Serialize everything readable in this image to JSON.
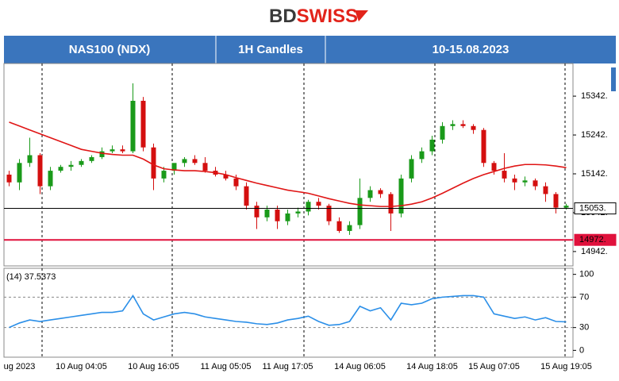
{
  "logo": {
    "first": "BD",
    "second": "SWISS"
  },
  "header": {
    "symbol": "NAS100 (NDX)",
    "timeframe": "1H Candles",
    "dates": "10-15.08.2023"
  },
  "chart_data": [
    {
      "type": "candlestick",
      "categories": [
        null,
        "ug 2023",
        null,
        null,
        null,
        null,
        null,
        "10 Aug 04:05",
        null,
        null,
        null,
        null,
        null,
        null,
        "10 Aug 16:05",
        null,
        null,
        null,
        null,
        null,
        null,
        "11 Aug 05:05",
        null,
        null,
        null,
        null,
        null,
        "11 Aug 17:05",
        null,
        null,
        null,
        null,
        null,
        null,
        "14 Aug 06:05",
        null,
        null,
        null,
        null,
        null,
        null,
        "14 Aug 18:05",
        null,
        null,
        null,
        null,
        null,
        "15 Aug 07:05",
        null,
        null,
        null,
        null,
        null,
        null,
        "15 Aug 19:05"
      ],
      "open": [
        15140,
        15120,
        15170,
        15190,
        15110,
        15150,
        15160,
        15165,
        15175,
        15185,
        15200,
        15205,
        15200,
        15330,
        15210,
        15130,
        15150,
        15170,
        15180,
        15170,
        15150,
        15140,
        15130,
        15110,
        15060,
        15030,
        15050,
        15020,
        15040,
        15045,
        15070,
        15060,
        15020,
        14995,
        15010,
        15080,
        15100,
        15090,
        15040,
        15130,
        15180,
        15200,
        15230,
        15265,
        15270,
        15265,
        15255,
        15170,
        15150,
        15130,
        15120,
        15125,
        15110,
        15090,
        15055
      ],
      "high": [
        15150,
        15180,
        15235,
        15195,
        15160,
        15165,
        15175,
        15180,
        15190,
        15210,
        15215,
        15215,
        15375,
        15340,
        15220,
        15160,
        15165,
        15185,
        15190,
        15185,
        15160,
        15150,
        15140,
        15120,
        15070,
        15060,
        15060,
        15050,
        15055,
        15075,
        15080,
        15065,
        15030,
        15020,
        15130,
        15110,
        15105,
        15095,
        15140,
        15190,
        15210,
        15240,
        15275,
        15280,
        15280,
        15270,
        15260,
        15175,
        15195,
        15140,
        15135,
        15130,
        15120,
        15095,
        15065
      ],
      "low": [
        15110,
        15100,
        15160,
        15090,
        15100,
        15145,
        15150,
        15160,
        15170,
        15180,
        15195,
        15195,
        15195,
        15200,
        15100,
        15120,
        15140,
        15160,
        15165,
        15145,
        15135,
        15125,
        15100,
        15050,
        15000,
        15020,
        15000,
        15010,
        15030,
        15035,
        15050,
        15010,
        14990,
        14985,
        15000,
        15070,
        15080,
        14995,
        15030,
        15120,
        15170,
        15190,
        15220,
        15255,
        15260,
        15245,
        15160,
        15140,
        15120,
        15100,
        15110,
        15100,
        15070,
        15040,
        15050
      ],
      "close": [
        15120,
        15170,
        15190,
        15110,
        15150,
        15160,
        15165,
        15175,
        15185,
        15200,
        15205,
        15200,
        15330,
        15210,
        15130,
        15150,
        15170,
        15180,
        15170,
        15150,
        15140,
        15130,
        15110,
        15060,
        15030,
        15050,
        15020,
        15040,
        15045,
        15070,
        15060,
        15020,
        14995,
        15010,
        15080,
        15100,
        15090,
        15040,
        15130,
        15180,
        15200,
        15230,
        15265,
        15270,
        15265,
        15255,
        15170,
        15150,
        15130,
        15120,
        15125,
        15110,
        15090,
        15055,
        15060
      ],
      "up_color": "#1a9a1a",
      "down_color": "#d40f0f",
      "ma": {
        "color": "#e01515",
        "values": [
          15275,
          15265,
          15255,
          15245,
          15235,
          15225,
          15215,
          15205,
          15200,
          15195,
          15192,
          15190,
          15190,
          15180,
          15165,
          15155,
          15152,
          15150,
          15150,
          15148,
          15145,
          15140,
          15132,
          15125,
          15118,
          15112,
          15106,
          15100,
          15096,
          15092,
          15085,
          15078,
          15072,
          15066,
          15062,
          15060,
          15058,
          15058,
          15060,
          15064,
          15070,
          15080,
          15092,
          15105,
          15118,
          15130,
          15140,
          15148,
          15156,
          15162,
          15166,
          15166,
          15165,
          15162,
          15158
        ]
      },
      "ylim": [
        14905,
        15426
      ],
      "yticks": [
        {
          "value": 15342,
          "label": "15342."
        },
        {
          "value": 15242,
          "label": "15242."
        },
        {
          "value": 15142,
          "label": "15142."
        },
        {
          "value": 15042,
          "label": "15042."
        },
        {
          "value": 14942,
          "label": "14942."
        }
      ],
      "hlines": [
        {
          "value": 15053,
          "label": "15053.",
          "color": "#000000"
        },
        {
          "value": 14972,
          "label": "14972.",
          "color": "#e0113c"
        }
      ]
    },
    {
      "type": "line",
      "title": "(14) 37.5373",
      "color": "#2b8fe8",
      "values": [
        30,
        36,
        40,
        38,
        40,
        42,
        44,
        46,
        48,
        50,
        50,
        52,
        72,
        48,
        40,
        44,
        48,
        50,
        48,
        44,
        42,
        40,
        38,
        37,
        35,
        34,
        36,
        40,
        42,
        45,
        38,
        33,
        34,
        38,
        58,
        52,
        56,
        40,
        62,
        60,
        62,
        68,
        70,
        71,
        72,
        72,
        70,
        48,
        45,
        42,
        44,
        40,
        43,
        38,
        37.5
      ],
      "ylim": [
        -9,
        108
      ],
      "yticks": [
        100,
        70,
        30,
        0
      ],
      "levels": [
        70,
        30
      ]
    }
  ]
}
